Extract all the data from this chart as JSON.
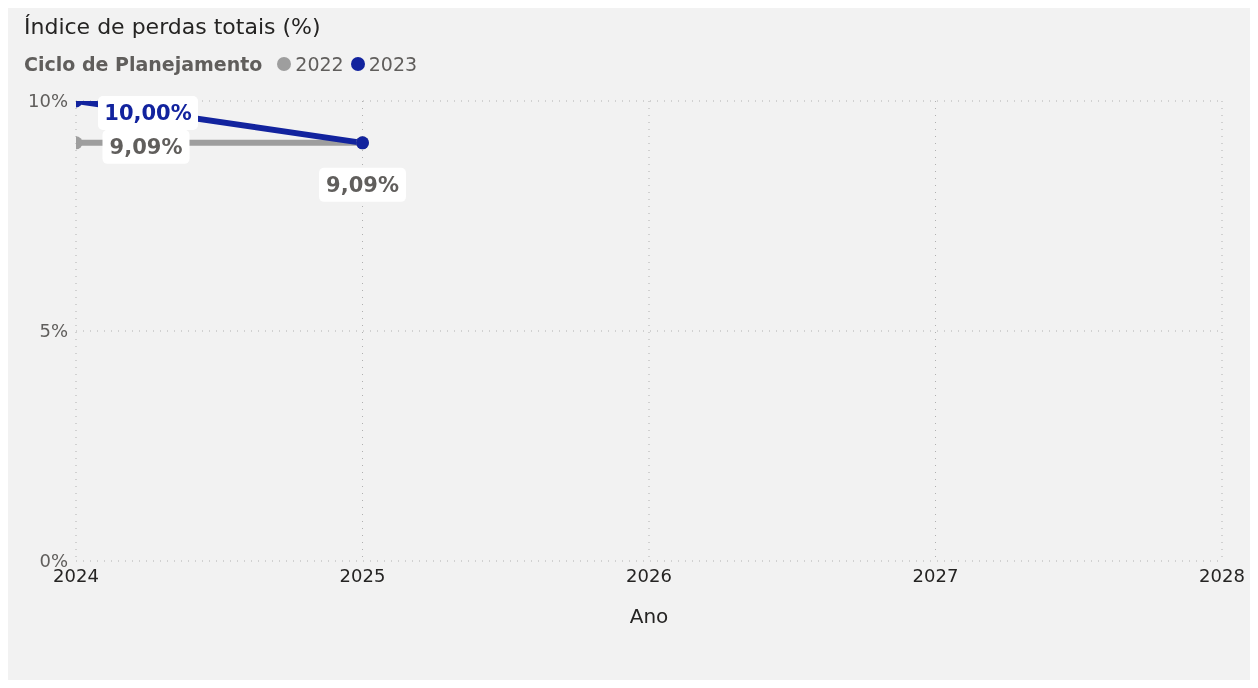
{
  "chart_data": {
    "type": "line",
    "title": "Índice de perdas totais (%)",
    "xlabel": "Ano",
    "legend_title": "Ciclo de Planejamento",
    "legend": "top left",
    "grid": true,
    "marker": "circle",
    "line_style": "solid",
    "xlim": [
      2024,
      2028
    ],
    "xticks": [
      2024,
      2025,
      2026,
      2027,
      2028
    ],
    "ylim": [
      0,
      10
    ],
    "yticks": [
      {
        "value": 0,
        "label": "0%"
      },
      {
        "value": 5,
        "label": "5%"
      },
      {
        "value": 10,
        "label": "10%"
      }
    ],
    "x": [
      2024,
      2025
    ],
    "series": [
      {
        "name": "2022",
        "color": "#9e9e9e",
        "values": [
          9.09,
          9.09
        ],
        "value_labels": [
          "9,09%",
          "9,09%"
        ]
      },
      {
        "name": "2023",
        "color": "#12239e",
        "values": [
          10,
          9.09
        ],
        "value_labels": [
          "10,00%",
          null
        ]
      }
    ]
  }
}
